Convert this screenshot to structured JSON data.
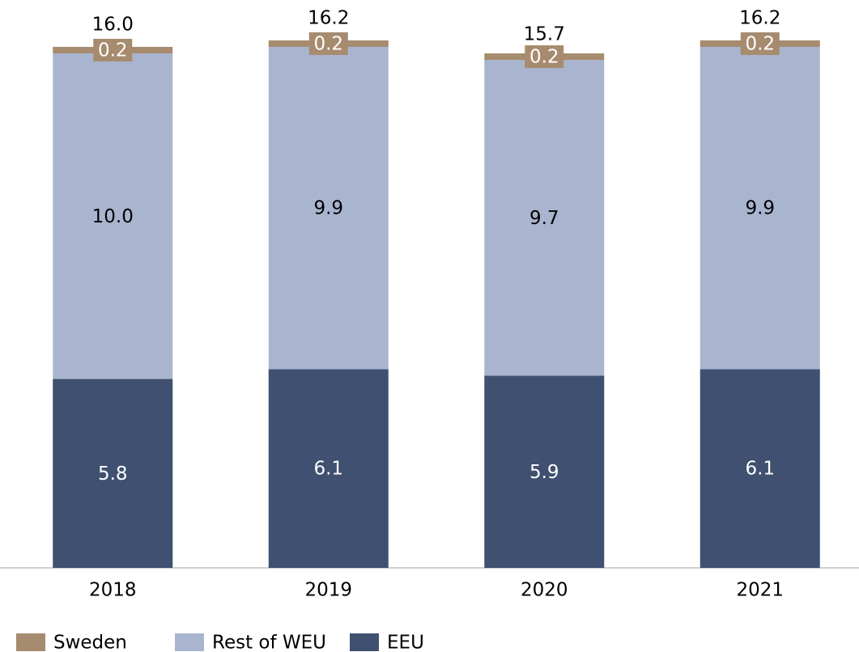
{
  "chart_data": {
    "type": "stacked_bar",
    "categories": [
      "2018",
      "2019",
      "2020",
      "2021"
    ],
    "series": [
      {
        "name": "Sweden",
        "color": "#a78b6e",
        "values": [
          0.2,
          0.2,
          0.2,
          0.2
        ]
      },
      {
        "name": "Rest of WEU",
        "color": "#a9b5cf",
        "values": [
          10,
          9.9,
          9.7,
          9.9
        ],
        "value_labels": [
          "10.0",
          "9.9",
          "9.7",
          "9.9"
        ]
      },
      {
        "name": "EEU",
        "color": "#3f5070",
        "values": [
          5.8,
          6.1,
          5.9,
          6.1
        ]
      }
    ],
    "totals": [
      16,
      16.2,
      15.7,
      16.2
    ],
    "total_labels": [
      "16.0",
      "16.2",
      "15.7",
      "16.2"
    ],
    "ylim": [
      0,
      17.44
    ]
  }
}
